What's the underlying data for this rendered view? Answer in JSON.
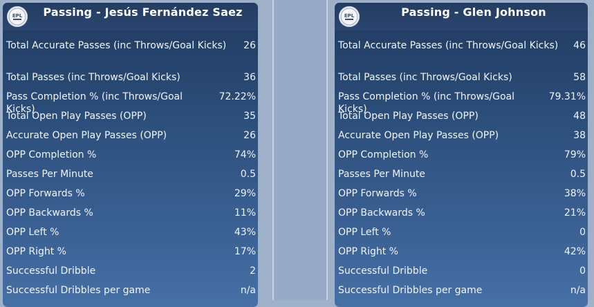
{
  "logo_text": "EPL",
  "left": {
    "title": "Passing - Jesús Fernández Saez",
    "rows": [
      {
        "label": "Total Accurate Passes (inc Throws/Goal Kicks)",
        "value": "26"
      },
      {
        "label": "Total Passes (inc Throws/Goal Kicks)",
        "value": "36"
      },
      {
        "label": "Pass Completion % (inc Throws/Goal Kicks)",
        "value": "72.22%"
      },
      {
        "label": "Total Open Play Passes (OPP)",
        "value": "35"
      },
      {
        "label": "Accurate Open Play Passes (OPP)",
        "value": "26"
      },
      {
        "label": "OPP Completion %",
        "value": "74%"
      },
      {
        "label": "Passes Per Minute",
        "value": "0.5"
      },
      {
        "label": "OPP Forwards %",
        "value": "29%"
      },
      {
        "label": "OPP Backwards %",
        "value": "11%"
      },
      {
        "label": "OPP Left %",
        "value": "43%"
      },
      {
        "label": "OPP Right %",
        "value": "17%"
      },
      {
        "label": "Successful Dribble",
        "value": "2"
      },
      {
        "label": "Successful Dribbles per game",
        "value": "n/a"
      }
    ]
  },
  "right": {
    "title": "Passing - Glen Johnson",
    "rows": [
      {
        "label": "Total Accurate Passes (inc Throws/Goal Kicks)",
        "value": "46"
      },
      {
        "label": "Total Passes (inc Throws/Goal Kicks)",
        "value": "58"
      },
      {
        "label": "Pass Completion % (inc Throws/Goal Kicks)",
        "value": "79.31%"
      },
      {
        "label": "Total Open Play Passes (OPP)",
        "value": "48"
      },
      {
        "label": "Accurate Open Play Passes (OPP)",
        "value": "38"
      },
      {
        "label": "OPP Completion %",
        "value": "79%"
      },
      {
        "label": "Passes Per Minute",
        "value": "0.5"
      },
      {
        "label": "OPP Forwards %",
        "value": "38%"
      },
      {
        "label": "OPP Backwards %",
        "value": "21%"
      },
      {
        "label": "OPP Left %",
        "value": "0"
      },
      {
        "label": "OPP Right %",
        "value": "42%"
      },
      {
        "label": "Successful Dribble",
        "value": "0"
      },
      {
        "label": "Successful Dribbles per game",
        "value": "n/a"
      }
    ]
  }
}
